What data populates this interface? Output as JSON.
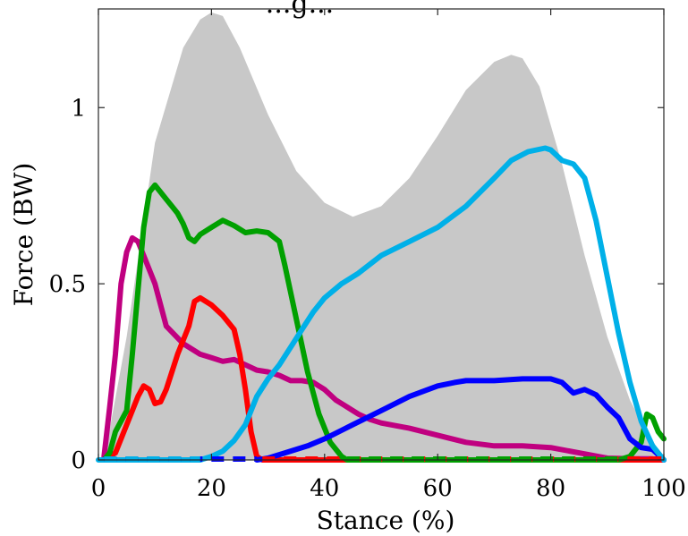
{
  "chart_data": {
    "type": "line",
    "title": "...g...",
    "xlabel": "Stance (%)",
    "ylabel": "Force (BW)",
    "xlim": [
      0,
      100
    ],
    "ylim": [
      0,
      1.28
    ],
    "x_ticks": [
      0,
      20,
      40,
      60,
      80,
      100
    ],
    "y_ticks": [
      0,
      0.5,
      1
    ],
    "x_tick_labels": [
      "0",
      "20",
      "40",
      "60",
      "80",
      "100"
    ],
    "y_tick_labels": [
      "0",
      "0.5",
      "1"
    ],
    "grid": false,
    "legend": "none",
    "band": {
      "color": "#c8c8c8",
      "x": [
        1,
        5,
        10,
        15,
        18,
        20,
        22,
        25,
        30,
        35,
        40,
        45,
        50,
        55,
        60,
        65,
        70,
        73,
        75,
        78,
        82,
        86,
        90,
        94,
        97,
        99,
        100
      ],
      "y": [
        0,
        0.35,
        0.9,
        1.17,
        1.25,
        1.27,
        1.26,
        1.17,
        0.98,
        0.82,
        0.73,
        0.69,
        0.72,
        0.8,
        0.92,
        1.05,
        1.13,
        1.15,
        1.14,
        1.06,
        0.84,
        0.58,
        0.35,
        0.17,
        0.08,
        0.03,
        0
      ]
    },
    "series": [
      {
        "color": "#c00080",
        "x": [
          1,
          2,
          3,
          4,
          5,
          6,
          7,
          8,
          10,
          12,
          15,
          18,
          20,
          22,
          24,
          26,
          28,
          30,
          32,
          34,
          36,
          38,
          40,
          42,
          44,
          46,
          48,
          50,
          55,
          60,
          65,
          70,
          75,
          80,
          85,
          90,
          95,
          98,
          100
        ],
        "y": [
          0.01,
          0.15,
          0.3,
          0.5,
          0.59,
          0.63,
          0.62,
          0.58,
          0.5,
          0.38,
          0.33,
          0.3,
          0.29,
          0.28,
          0.285,
          0.27,
          0.255,
          0.25,
          0.24,
          0.225,
          0.225,
          0.22,
          0.2,
          0.17,
          0.15,
          0.13,
          0.115,
          0.105,
          0.09,
          0.07,
          0.05,
          0.04,
          0.04,
          0.035,
          0.02,
          0.005,
          0.003,
          0.003,
          0
        ]
      },
      {
        "color": "#ff0000",
        "x": [
          1,
          3,
          5,
          7,
          8,
          9,
          10,
          11,
          12,
          14,
          16,
          17,
          18,
          20,
          22,
          24,
          25,
          26,
          27,
          28,
          29,
          100
        ],
        "y": [
          0,
          0.02,
          0.1,
          0.18,
          0.21,
          0.2,
          0.16,
          0.165,
          0.2,
          0.3,
          0.38,
          0.45,
          0.46,
          0.44,
          0.41,
          0.37,
          0.3,
          0.2,
          0.08,
          0.01,
          0,
          0
        ]
      },
      {
        "color": "#00a000",
        "x": [
          1,
          2,
          3,
          4,
          5,
          6,
          7,
          8,
          9,
          10,
          11,
          12,
          13,
          14,
          15,
          16,
          17,
          18,
          20,
          22,
          24,
          26,
          28,
          30,
          32,
          33,
          35,
          37,
          39,
          41,
          43,
          44,
          92,
          94,
          96,
          97,
          98,
          99,
          100
        ],
        "y": [
          0,
          0.02,
          0.08,
          0.11,
          0.14,
          0.3,
          0.48,
          0.66,
          0.76,
          0.78,
          0.76,
          0.74,
          0.72,
          0.7,
          0.67,
          0.63,
          0.62,
          0.64,
          0.66,
          0.68,
          0.665,
          0.645,
          0.65,
          0.645,
          0.62,
          0.55,
          0.4,
          0.25,
          0.13,
          0.05,
          0.01,
          0,
          0,
          0.01,
          0.05,
          0.13,
          0.12,
          0.08,
          0.06
        ]
      },
      {
        "color": "#0000ff",
        "x": [
          28,
          30,
          33,
          37,
          40,
          45,
          50,
          55,
          60,
          63,
          65,
          70,
          75,
          80,
          82,
          84,
          86,
          88,
          90,
          92,
          94,
          96,
          98,
          100
        ],
        "y": [
          0,
          0.005,
          0.02,
          0.04,
          0.06,
          0.1,
          0.14,
          0.18,
          0.21,
          0.22,
          0.225,
          0.225,
          0.23,
          0.23,
          0.22,
          0.19,
          0.2,
          0.185,
          0.15,
          0.12,
          0.06,
          0.035,
          0.03,
          0
        ]
      },
      {
        "color": "#00b0e8",
        "x": [
          0,
          18,
          20,
          22,
          24,
          26,
          28,
          30,
          32,
          34,
          36,
          38,
          40,
          43,
          46,
          50,
          55,
          60,
          65,
          70,
          73,
          76,
          79,
          80,
          82,
          84,
          86,
          88,
          90,
          92,
          94,
          96,
          98,
          100
        ],
        "y": [
          0,
          0,
          0.01,
          0.025,
          0.055,
          0.1,
          0.18,
          0.23,
          0.27,
          0.32,
          0.37,
          0.42,
          0.46,
          0.5,
          0.53,
          0.58,
          0.62,
          0.66,
          0.72,
          0.8,
          0.85,
          0.875,
          0.885,
          0.88,
          0.85,
          0.84,
          0.8,
          0.68,
          0.52,
          0.36,
          0.22,
          0.11,
          0.04,
          0
        ]
      }
    ],
    "baseline_dashes": [
      {
        "color": "#ff0000",
        "x_range": [
          29,
          100
        ]
      },
      {
        "color": "#00a000",
        "x_range": [
          44,
          92
        ]
      },
      {
        "color": "#0000ff",
        "x_range": [
          1,
          28
        ]
      },
      {
        "color": "#00b0e8",
        "x_range": [
          1,
          18
        ]
      }
    ]
  }
}
